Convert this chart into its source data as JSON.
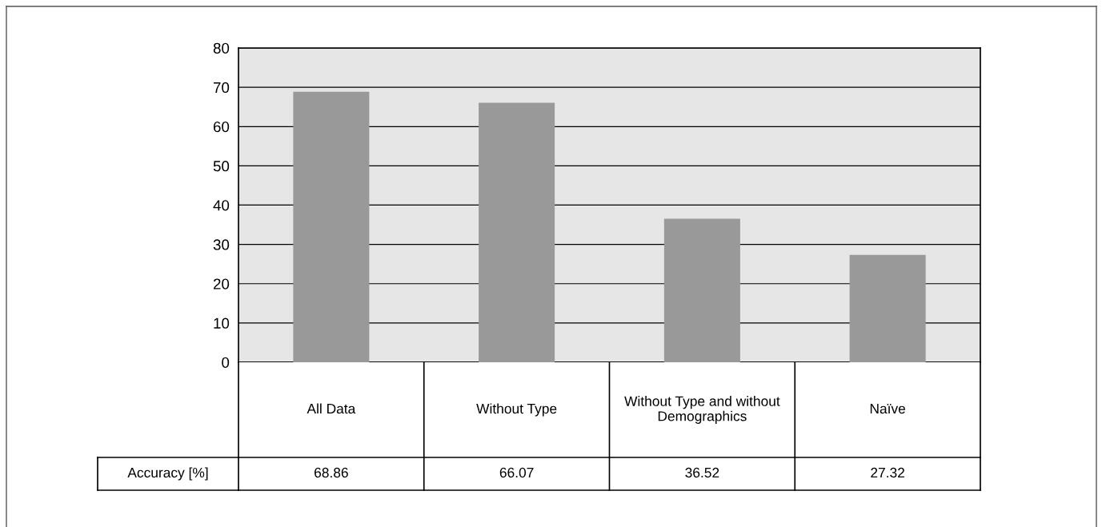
{
  "chart_data": {
    "type": "bar",
    "categories": [
      "All Data",
      "Without Type",
      "Without Type and without Demographics",
      "Naïve"
    ],
    "series": [
      {
        "name": "Accuracy [%]",
        "color": "#999999",
        "values": [
          68.86,
          66.07,
          36.52,
          27.32
        ]
      }
    ],
    "ylim": [
      0,
      80
    ],
    "yticks": [
      0,
      10,
      20,
      30,
      40,
      50,
      60,
      70,
      80
    ],
    "grid": "y",
    "data_labels": true
  }
}
